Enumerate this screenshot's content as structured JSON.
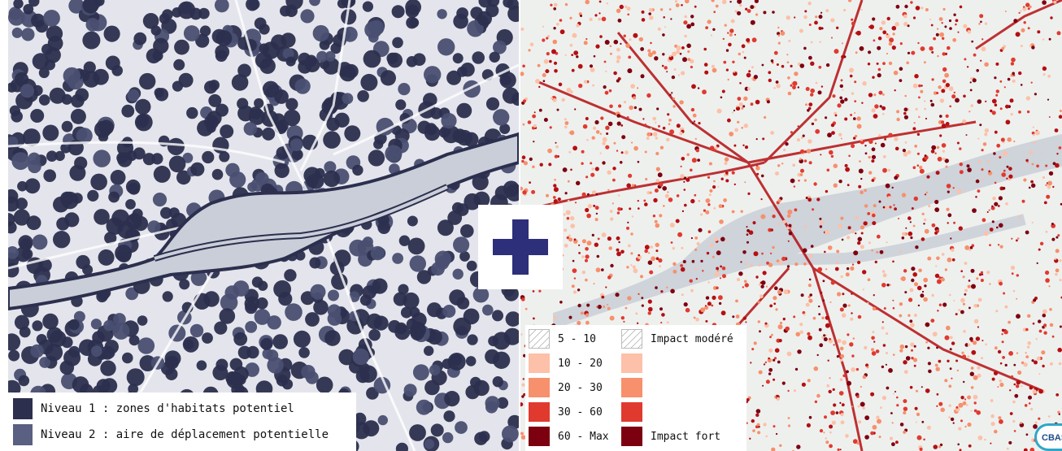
{
  "left_legend": {
    "items": [
      {
        "label": "Niveau 1 : zones d'habitats potentiel",
        "color": "#2c2f4e"
      },
      {
        "label": "Niveau 2 : aire de déplacement potentielle",
        "color": "#5a6082"
      }
    ]
  },
  "right_legend": {
    "classes": [
      {
        "label": "5 - 10",
        "color": "hatch"
      },
      {
        "label": "10 - 20",
        "color": "#fcc1a8"
      },
      {
        "label": "20 - 30",
        "color": "#f7906c"
      },
      {
        "label": "30 - 60",
        "color": "#e03a2f"
      },
      {
        "label": "60 - Max",
        "color": "#7d0010"
      }
    ],
    "impact_moderate": "Impact modéré",
    "impact_strong": "Impact fort"
  },
  "logo_text": "CBAS",
  "colors": {
    "left_background": "#e4e5ec",
    "left_habitat": "#2c2f4e",
    "river": "#c9ced8",
    "right_background": "#eef0ee",
    "right_impact": "#b40f12",
    "plus": "#2d2f7a"
  },
  "icons": [
    "plus-icon",
    "cbas-logo"
  ]
}
